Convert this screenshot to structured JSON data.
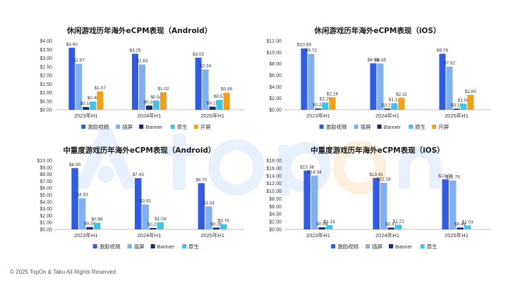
{
  "colors": {
    "激励视频": "#2e5ce6",
    "插屏": "#7db0f5",
    "Banner": "#1a2a6b",
    "原生": "#3ec6ea",
    "开屏": "#f5a014",
    "axis": "#bfbfbf",
    "watermark_main": "#e6eefc",
    "watermark_accent": "#fdf0dc"
  },
  "footer": {
    "text": "© 2025 TopOn & Taku All Rights Reserved"
  },
  "chart_data": [
    {
      "type": "bar",
      "title": "休闲游戏历年海外eCPM表现（Android）",
      "categories": [
        "2023年H1",
        "2024年H1",
        "2025年H1"
      ],
      "series": [
        {
          "name": "激励视频",
          "values": [
            3.6,
            3.25,
            3.02
          ]
        },
        {
          "name": "插屏",
          "values": [
            2.67,
            2.63,
            2.34
          ]
        },
        {
          "name": "Banner",
          "values": [
            0.16,
            0.24,
            0.18
          ]
        },
        {
          "name": "原生",
          "values": [
            0.48,
            0.54,
            0.57
          ]
        },
        {
          "name": "开屏",
          "values": [
            1.07,
            1.02,
            0.99
          ]
        }
      ],
      "ylim": [
        0,
        4
      ],
      "yticks": [
        "$0.00",
        "$0.50",
        "$1.00",
        "$1.50",
        "$2.00",
        "$2.50",
        "$3.00",
        "$3.50",
        "$4.00"
      ],
      "labels": [
        [
          "$3.60",
          "$3.25",
          "$3.02"
        ],
        [
          "$2.67",
          "$2.63",
          "$2.34"
        ],
        [
          "$0.16",
          "$0.24",
          "$0.18"
        ],
        [
          "$0.48",
          "$0.54",
          "$0.57"
        ],
        [
          "$1.07",
          "$1.02",
          "$0.99"
        ]
      ],
      "legend": "bottom"
    },
    {
      "type": "bar",
      "title": "休闲游戏历年海外eCPM表现（iOS）",
      "categories": [
        "2023年H1",
        "2024年H1",
        "2025年H1"
      ],
      "series": [
        {
          "name": "激励视频",
          "values": [
            10.69,
            8.09,
            9.76
          ]
        },
        {
          "name": "插屏",
          "values": [
            9.72,
            8.05,
            7.52
          ]
        },
        {
          "name": "Banner",
          "values": [
            0.22,
            0.21,
            0.19
          ]
        },
        {
          "name": "原生",
          "values": [
            1.29,
            1.14,
            1.06
          ]
        },
        {
          "name": "开屏",
          "values": [
            2.16,
            2.11,
            2.6
          ]
        }
      ],
      "ylim": [
        0,
        12
      ],
      "yticks": [
        "$0.00",
        "$2.00",
        "$4.00",
        "$6.00",
        "$8.00",
        "$10.00",
        "$12.00"
      ],
      "labels": [
        [
          "$10.69",
          "$8.09",
          "$9.76"
        ],
        [
          "$9.72",
          "$8.05",
          "$7.52"
        ],
        [
          "$0.22",
          "$0.21",
          "$0.19"
        ],
        [
          "$1.29",
          "$1.14",
          "$1.06"
        ],
        [
          "$2.16",
          "$2.11",
          "$2.60"
        ]
      ],
      "legend": "bottom"
    },
    {
      "type": "bar",
      "title": "中重度游戏历年海外eCPM表现（Android）",
      "categories": [
        "2023年H1",
        "2024年H1",
        "2025年H1"
      ],
      "series": [
        {
          "name": "激励视频",
          "values": [
            8.9,
            7.43,
            6.7
          ]
        },
        {
          "name": "插屏",
          "values": [
            4.53,
            3.61,
            3.34
          ]
        },
        {
          "name": "Banner",
          "values": [
            0.34,
            0.21,
            0.26
          ]
        },
        {
          "name": "原生",
          "values": [
            0.96,
            1.04,
            0.76
          ]
        }
      ],
      "ylim": [
        0,
        10
      ],
      "yticks": [
        "$0.00",
        "$1.00",
        "$2.00",
        "$3.00",
        "$4.00",
        "$5.00",
        "$6.00",
        "$7.00",
        "$8.00",
        "$9.00",
        "$10.00"
      ],
      "labels": [
        [
          "$8.90",
          "$7.43",
          "$6.70"
        ],
        [
          "$4.53",
          "$3.61",
          "$3.34"
        ],
        [
          "$0.34",
          "$0.21",
          "$0.26"
        ],
        [
          "$0.96",
          "$1.04",
          "$0.76"
        ]
      ],
      "legend": "bottom"
    },
    {
      "type": "bar",
      "title": "中重度游戏历年海外eCPM表现（iOS）",
      "categories": [
        "2023年H1",
        "2024年H1",
        "2025年H1"
      ],
      "series": [
        {
          "name": "激励视频",
          "values": [
            15.36,
            13.41,
            13.08
          ]
        },
        {
          "name": "插屏",
          "values": [
            14.04,
            12.18,
            12.79
          ]
        },
        {
          "name": "Banner",
          "values": [
            0.54,
            0.47,
            0.48
          ]
        },
        {
          "name": "原生",
          "values": [
            1.14,
            1.21,
            1.03
          ]
        }
      ],
      "ylim": [
        0,
        18
      ],
      "yticks": [
        "$0.00",
        "$2.00",
        "$4.00",
        "$6.00",
        "$8.00",
        "$10.00",
        "$12.00",
        "$14.00",
        "$16.00",
        "$18.00"
      ],
      "labels": [
        [
          "$15.36",
          "$13.41",
          "$13.08"
        ],
        [
          "$14.04",
          "$12.18",
          "$12.79"
        ],
        [
          "$0.54",
          "$0.47",
          "$0.48"
        ],
        [
          "$1.14",
          "$1.21",
          "$1.03"
        ]
      ],
      "legend": "bottom"
    }
  ]
}
